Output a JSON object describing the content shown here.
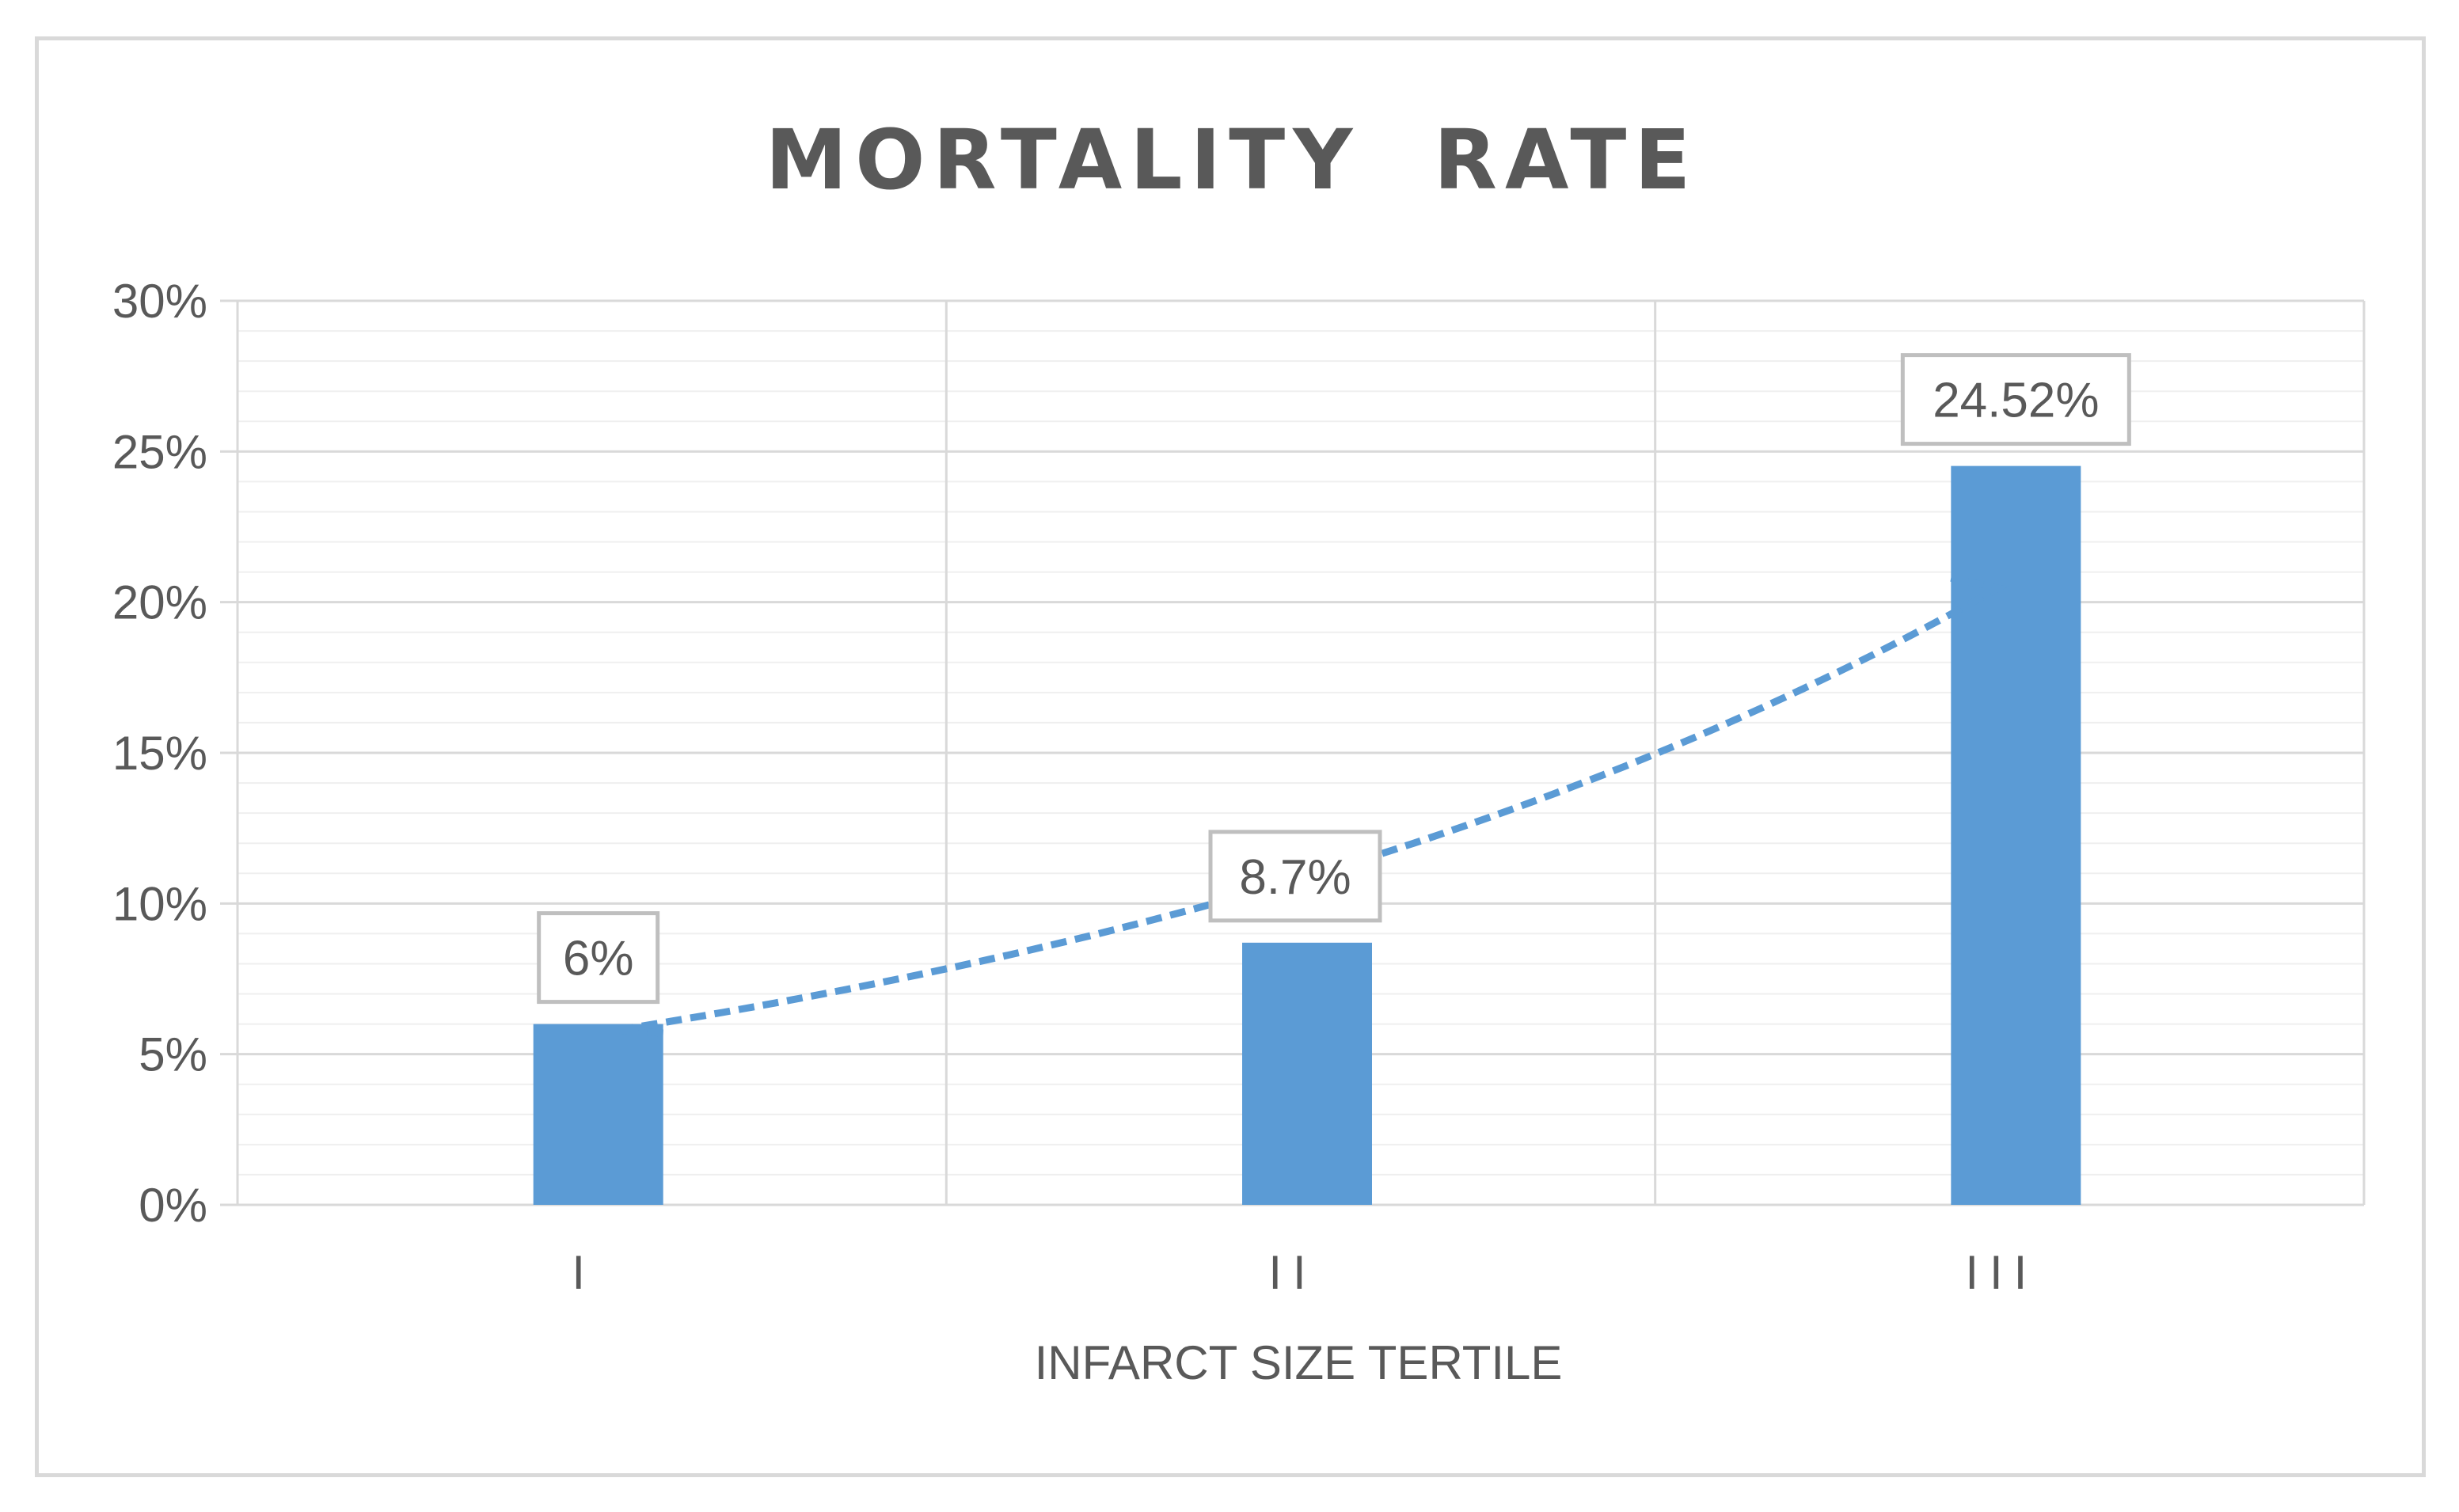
{
  "chart_data": {
    "type": "bar",
    "title": "MORTALITY  RATE",
    "xlabel": "INFARCT SIZE TERTILE",
    "ylabel": "",
    "categories": [
      "I",
      "II",
      "III"
    ],
    "values": [
      6,
      8.7,
      24.52
    ],
    "data_labels": [
      "6%",
      "8.7%",
      "24.52%"
    ],
    "y_ticks": [
      "0%",
      "5%",
      "10%",
      "15%",
      "20%",
      "25%",
      "30%"
    ],
    "ylim": [
      0,
      30
    ],
    "y_unit": "%",
    "trendline": {
      "type": "exponential",
      "style": "dashed",
      "x_range": [
        1,
        3
      ],
      "start_value": 5.7,
      "end_value": 20.8
    },
    "grid": true,
    "legend": "none",
    "colors": {
      "bar": "#5b9bd5",
      "trendline": "#5b9bd5",
      "gridline_major": "#d9d9d9",
      "gridline_minor": "#efefef",
      "text": "#595959",
      "label_border": "#bfbfbf"
    }
  }
}
